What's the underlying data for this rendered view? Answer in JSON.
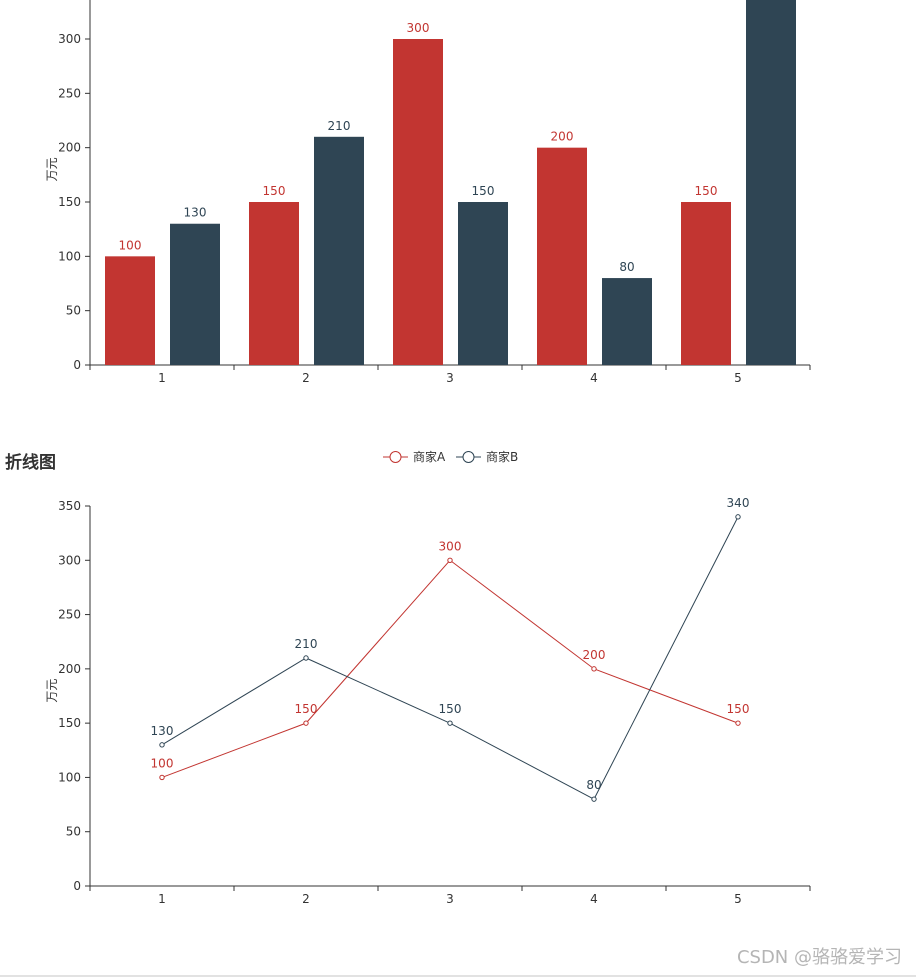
{
  "colors": {
    "series_a": "#c23531",
    "series_b": "#2f4554",
    "axis": "#333333",
    "tick_text": "#333333"
  },
  "chart_data": [
    {
      "type": "bar",
      "categories": [
        "1",
        "2",
        "3",
        "4",
        "5"
      ],
      "ylabel": "万元",
      "ylim": [
        0,
        350
      ],
      "yticks": [
        0,
        50,
        100,
        150,
        200,
        250,
        300
      ],
      "series": [
        {
          "values": [
            100,
            150,
            300,
            200,
            150
          ],
          "labels": [
            "100",
            "150",
            "300",
            "200",
            "150"
          ]
        },
        {
          "values": [
            130,
            210,
            150,
            80,
            340
          ],
          "labels": [
            "130",
            "210",
            "150",
            "80",
            ""
          ]
        }
      ]
    },
    {
      "type": "line",
      "title": "折线图",
      "categories": [
        "1",
        "2",
        "3",
        "4",
        "5"
      ],
      "ylabel": "万元",
      "ylim": [
        0,
        350
      ],
      "yticks": [
        0,
        50,
        100,
        150,
        200,
        250,
        300,
        350
      ],
      "legend_position": "top-center",
      "series": [
        {
          "name": "商家A",
          "values": [
            100,
            150,
            300,
            200,
            150
          ],
          "labels": [
            "100",
            "150",
            "300",
            "200",
            "150"
          ]
        },
        {
          "name": "商家B",
          "values": [
            130,
            210,
            150,
            80,
            340
          ],
          "labels": [
            "130",
            "210",
            "150",
            "80",
            "340"
          ]
        }
      ]
    }
  ],
  "watermark": "CSDN @骆骆爱学习"
}
